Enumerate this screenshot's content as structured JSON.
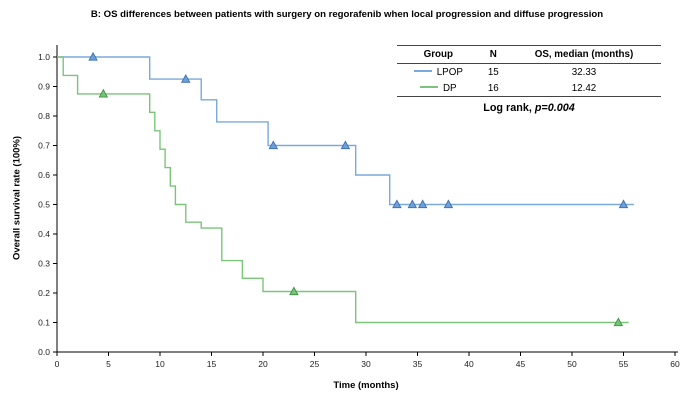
{
  "title": "B: OS differences between patients with surgery on regorafenib when local progression and diffuse progression",
  "axes": {
    "xlabel": "Time (months)",
    "ylabel": "Overall survival rate (100%)"
  },
  "legend": {
    "headers": [
      "Group",
      "N",
      "OS, median (months)"
    ],
    "logrank_prefix": "Log rank, ",
    "logrank_p": "p=0.004"
  },
  "chart_data": {
    "type": "line",
    "subtype": "kaplan-meier-step",
    "title": "B: OS differences between patients with surgery on regorafenib when local progression and diffuse progression",
    "xlabel": "Time (months)",
    "ylabel": "Overall survival rate (100%)",
    "xlim": [
      0,
      60
    ],
    "ylim": [
      0,
      1.0
    ],
    "xticks": [
      0,
      5,
      10,
      15,
      20,
      25,
      30,
      35,
      40,
      45,
      50,
      55,
      60
    ],
    "yticks": [
      0.0,
      0.1,
      0.2,
      0.3,
      0.4,
      0.5,
      0.6,
      0.7,
      0.8,
      0.9,
      1.0
    ],
    "ytick_labels": [
      "0.0",
      "0.1",
      "0.2",
      "0.3",
      "0.4",
      "0.5",
      "0.6",
      "0.7",
      "0.8",
      "0.9",
      "1.0"
    ],
    "grid": false,
    "legend_position": "upper right (table)",
    "annotation": "Log rank, p=0.004",
    "series": [
      {
        "name": "LPOP",
        "n": "15",
        "median": "32.33",
        "color": "#7aa9dc",
        "marker_fill": "#6f9fd8",
        "marker_stroke": "#3a6fb0",
        "steps": [
          [
            0,
            1.0
          ],
          [
            9,
            1.0
          ],
          [
            9,
            0.925
          ],
          [
            14,
            0.925
          ],
          [
            14,
            0.855
          ],
          [
            15.5,
            0.855
          ],
          [
            15.5,
            0.78
          ],
          [
            20.5,
            0.78
          ],
          [
            20.5,
            0.7
          ],
          [
            29,
            0.7
          ],
          [
            29,
            0.6
          ],
          [
            32.3,
            0.6
          ],
          [
            32.3,
            0.5
          ],
          [
            56,
            0.5
          ]
        ],
        "censors": [
          [
            3.5,
            1.0
          ],
          [
            12.5,
            0.925
          ],
          [
            21,
            0.7
          ],
          [
            28,
            0.7
          ],
          [
            33,
            0.5
          ],
          [
            34.5,
            0.5
          ],
          [
            35.5,
            0.5
          ],
          [
            38,
            0.5
          ],
          [
            55,
            0.5
          ]
        ]
      },
      {
        "name": "DP",
        "n": "16",
        "median": "12.42",
        "color": "#7cc47c",
        "marker_fill": "#74c476",
        "marker_stroke": "#3f9142",
        "steps": [
          [
            0,
            1.0
          ],
          [
            0.6,
            1.0
          ],
          [
            0.6,
            0.9375
          ],
          [
            2,
            0.9375
          ],
          [
            2,
            0.875
          ],
          [
            9,
            0.875
          ],
          [
            9,
            0.8125
          ],
          [
            9.5,
            0.8125
          ],
          [
            9.5,
            0.75
          ],
          [
            10,
            0.75
          ],
          [
            10,
            0.6875
          ],
          [
            10.5,
            0.6875
          ],
          [
            10.5,
            0.625
          ],
          [
            11,
            0.625
          ],
          [
            11,
            0.5625
          ],
          [
            11.5,
            0.5625
          ],
          [
            11.5,
            0.5
          ],
          [
            12.5,
            0.5
          ],
          [
            12.5,
            0.44
          ],
          [
            14,
            0.44
          ],
          [
            14,
            0.42
          ],
          [
            16,
            0.42
          ],
          [
            16,
            0.31
          ],
          [
            18,
            0.31
          ],
          [
            18,
            0.25
          ],
          [
            20,
            0.25
          ],
          [
            20,
            0.205
          ],
          [
            29,
            0.205
          ],
          [
            29,
            0.1
          ],
          [
            55.5,
            0.1
          ]
        ],
        "censors": [
          [
            4.5,
            0.875
          ],
          [
            23,
            0.205
          ],
          [
            54.5,
            0.1
          ]
        ]
      }
    ]
  }
}
